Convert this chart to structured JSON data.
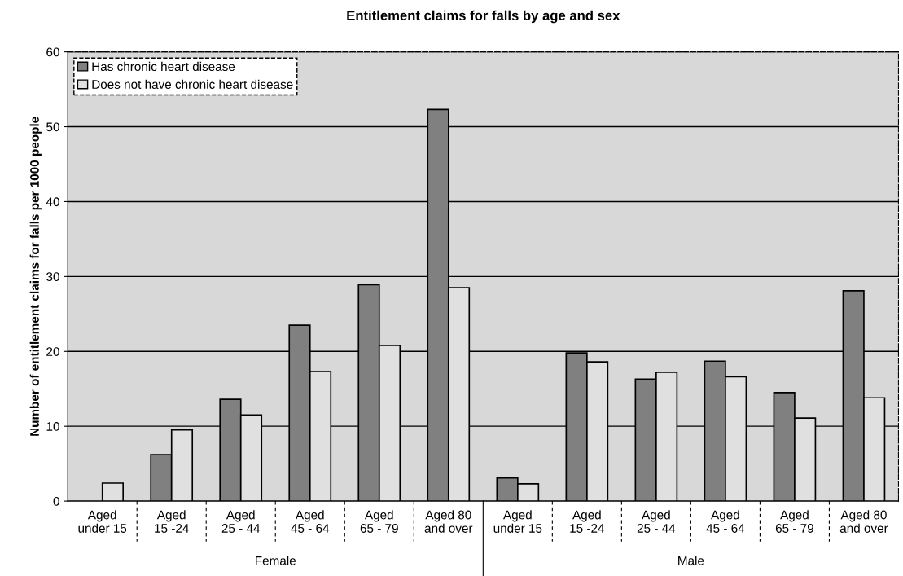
{
  "chart_data": {
    "type": "bar",
    "title": "Entitlement claims for falls by age and sex",
    "ylabel": "Number of entitlement claims for falls per 1000 people",
    "categories": [
      "Aged\nunder 15",
      "Aged\n15 -24",
      "Aged\n25 - 44",
      "Aged\n45 - 64",
      "Aged\n65 - 79",
      "Aged 80\nand over",
      "Aged\nunder 15",
      "Aged\n15 -24",
      "Aged\n25 - 44",
      "Aged\n45 - 64",
      "Aged\n65 - 79",
      "Aged 80\nand over"
    ],
    "series": [
      {
        "name": "Has chronic heart disease",
        "color": "#808080",
        "values": [
          null,
          6.2,
          13.6,
          23.5,
          28.9,
          52.3,
          3.1,
          19.8,
          16.3,
          18.7,
          14.5,
          28.1
        ]
      },
      {
        "name": "Does not have chronic heart disease",
        "color": "#e0e0e0",
        "values": [
          2.4,
          9.5,
          11.5,
          17.3,
          20.8,
          28.5,
          2.3,
          18.6,
          17.2,
          16.6,
          11.1,
          13.8
        ]
      }
    ],
    "annotations": [
      "Female",
      "Male"
    ],
    "ylim": [
      0,
      60
    ],
    "yticks": [
      0,
      10,
      20,
      30,
      40,
      50,
      60
    ],
    "grid": "y",
    "legend": "top left"
  }
}
